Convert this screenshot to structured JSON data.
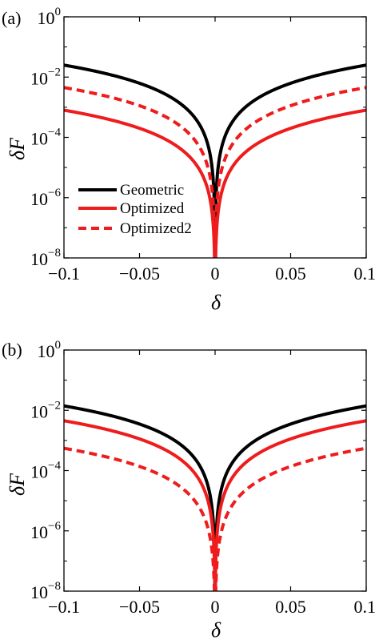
{
  "chart_data": [
    {
      "type": "line",
      "panel_label": "(a)",
      "xlabel": "δ",
      "ylabel": "δF",
      "x_scale": "linear",
      "y_scale": "log",
      "xlim": [
        -0.1,
        0.1
      ],
      "ylim": [
        1e-08,
        1
      ],
      "x_ticks": [
        {
          "value": -0.1,
          "label": "−0.1"
        },
        {
          "value": -0.05,
          "label": "−0.05"
        },
        {
          "value": 0,
          "label": "0"
        },
        {
          "value": 0.05,
          "label": "0.05"
        },
        {
          "value": 0.1,
          "label": "0.1"
        }
      ],
      "y_ticks": [
        {
          "value": 1e-08,
          "base": "10",
          "exp": "−8"
        },
        {
          "value": 1e-06,
          "base": "10",
          "exp": "−6"
        },
        {
          "value": 0.0001,
          "base": "10",
          "exp": "−4"
        },
        {
          "value": 0.01,
          "base": "10",
          "exp": "−2"
        },
        {
          "value": 1,
          "base": "10",
          "exp": "0"
        }
      ],
      "grid": false,
      "legend": {
        "placement": "center-left"
      },
      "series": [
        {
          "name": "Geometric",
          "color": "#000000",
          "dash": "solid",
          "model": "quadratic",
          "value_at_xlim": 0.025
        },
        {
          "name": "Optimized",
          "color": "#ee1c1c",
          "dash": "solid",
          "model": "quadratic",
          "value_at_xlim": 0.0008
        },
        {
          "name": "Optimized2",
          "color": "#ee1c1c",
          "dash": "dashed",
          "model": "quadratic",
          "value_at_xlim": 0.0045
        }
      ]
    },
    {
      "type": "line",
      "panel_label": "(b)",
      "xlabel": "δ",
      "ylabel": "δF",
      "x_scale": "linear",
      "y_scale": "log",
      "xlim": [
        -0.1,
        0.1
      ],
      "ylim": [
        1e-08,
        1
      ],
      "x_ticks": [
        {
          "value": -0.1,
          "label": "−0.1"
        },
        {
          "value": -0.05,
          "label": "−0.05"
        },
        {
          "value": 0,
          "label": "0"
        },
        {
          "value": 0.05,
          "label": "0.05"
        },
        {
          "value": 0.1,
          "label": "0.1"
        }
      ],
      "y_ticks": [
        {
          "value": 1e-08,
          "base": "10",
          "exp": "−8"
        },
        {
          "value": 1e-06,
          "base": "10",
          "exp": "−6"
        },
        {
          "value": 0.0001,
          "base": "10",
          "exp": "−4"
        },
        {
          "value": 0.01,
          "base": "10",
          "exp": "−2"
        },
        {
          "value": 1,
          "base": "10",
          "exp": "0"
        }
      ],
      "grid": false,
      "series": [
        {
          "name": "Geometric",
          "color": "#000000",
          "dash": "solid",
          "model": "quadratic",
          "value_at_xlim": 0.014
        },
        {
          "name": "Optimized",
          "color": "#ee1c1c",
          "dash": "solid",
          "model": "quadratic",
          "value_at_xlim": 0.0045
        },
        {
          "name": "Optimized2",
          "color": "#ee1c1c",
          "dash": "dashed",
          "model": "quadratic",
          "value_at_xlim": 0.00055
        }
      ]
    }
  ]
}
